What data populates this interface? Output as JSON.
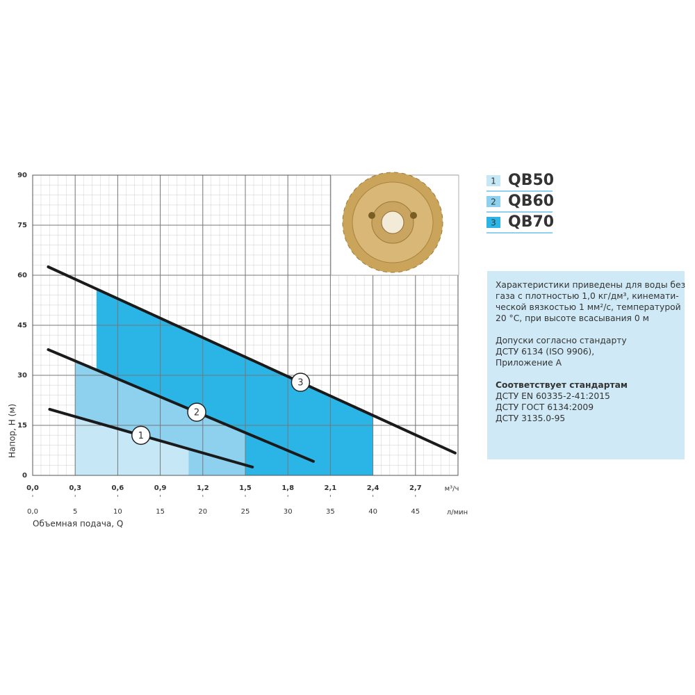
{
  "chart_data": {
    "type": "line",
    "xlabel": "Объемная подача, Q",
    "ylabel": "Напор, H (м)",
    "x_unit": "м³/ч",
    "x2_unit": "л/мин",
    "xlim": [
      0,
      3
    ],
    "ylim": [
      0,
      90
    ],
    "x2lim": [
      0,
      50
    ],
    "xticks": [
      {
        "value": 0,
        "label": "0,0"
      },
      {
        "value": 0.3,
        "label": "0,3"
      },
      {
        "value": 0.6,
        "label": "0,6"
      },
      {
        "value": 0.9,
        "label": "0,9"
      },
      {
        "value": 1.2,
        "label": "1,2"
      },
      {
        "value": 1.5,
        "label": "1,5"
      },
      {
        "value": 1.8,
        "label": "1,8"
      },
      {
        "value": 2.1,
        "label": "2,1"
      },
      {
        "value": 2.4,
        "label": "2,4"
      },
      {
        "value": 2.7,
        "label": "2,7"
      }
    ],
    "x2ticks": [
      {
        "value": 0,
        "label": "0,0"
      },
      5,
      10,
      15,
      20,
      25,
      30,
      35,
      40,
      45
    ],
    "yticks": [
      0,
      15,
      30,
      45,
      60,
      75,
      90
    ],
    "grid": true,
    "series": [
      {
        "name": "QB50",
        "label": "1",
        "color": "#1a1a1a",
        "x": [
          0.12,
          1.55
        ],
        "values": [
          19.8,
          2.5
        ],
        "range": [
          0.3,
          1.1
        ],
        "range_color": "#c6e7f6"
      },
      {
        "name": "QB60",
        "label": "2",
        "color": "#1a1a1a",
        "x": [
          0.11,
          1.98
        ],
        "values": [
          37.7,
          4.2
        ],
        "range": [
          0.3,
          1.5
        ],
        "range_color": "#8ed1ef"
      },
      {
        "name": "QB70",
        "label": "3",
        "color": "#1a1a1a",
        "x": [
          0.11,
          2.98
        ],
        "values": [
          62.5,
          6.7
        ],
        "range": [
          0.45,
          2.4
        ],
        "range_color": "#2bb5e7"
      }
    ]
  },
  "notes": {
    "p1": [
      "Характеристики приведены для воды без",
      "газа с плотностью 1,0 кг/дм³, кинемати-",
      "ческой вязкостью 1 мм²/с, температурой",
      "20 °С, при высоте всасывания 0 м"
    ],
    "p2": [
      "Допуски согласно стандарту",
      "ДСТУ 6134 (ISO 9906),",
      "Приложение А"
    ],
    "heading": "Соответствует стандартам",
    "p3": [
      "ДСТУ EN 60335-2-41:2015",
      "ДСТУ ГОСТ 6134:2009",
      "ДСТУ 3135.0-95"
    ]
  }
}
